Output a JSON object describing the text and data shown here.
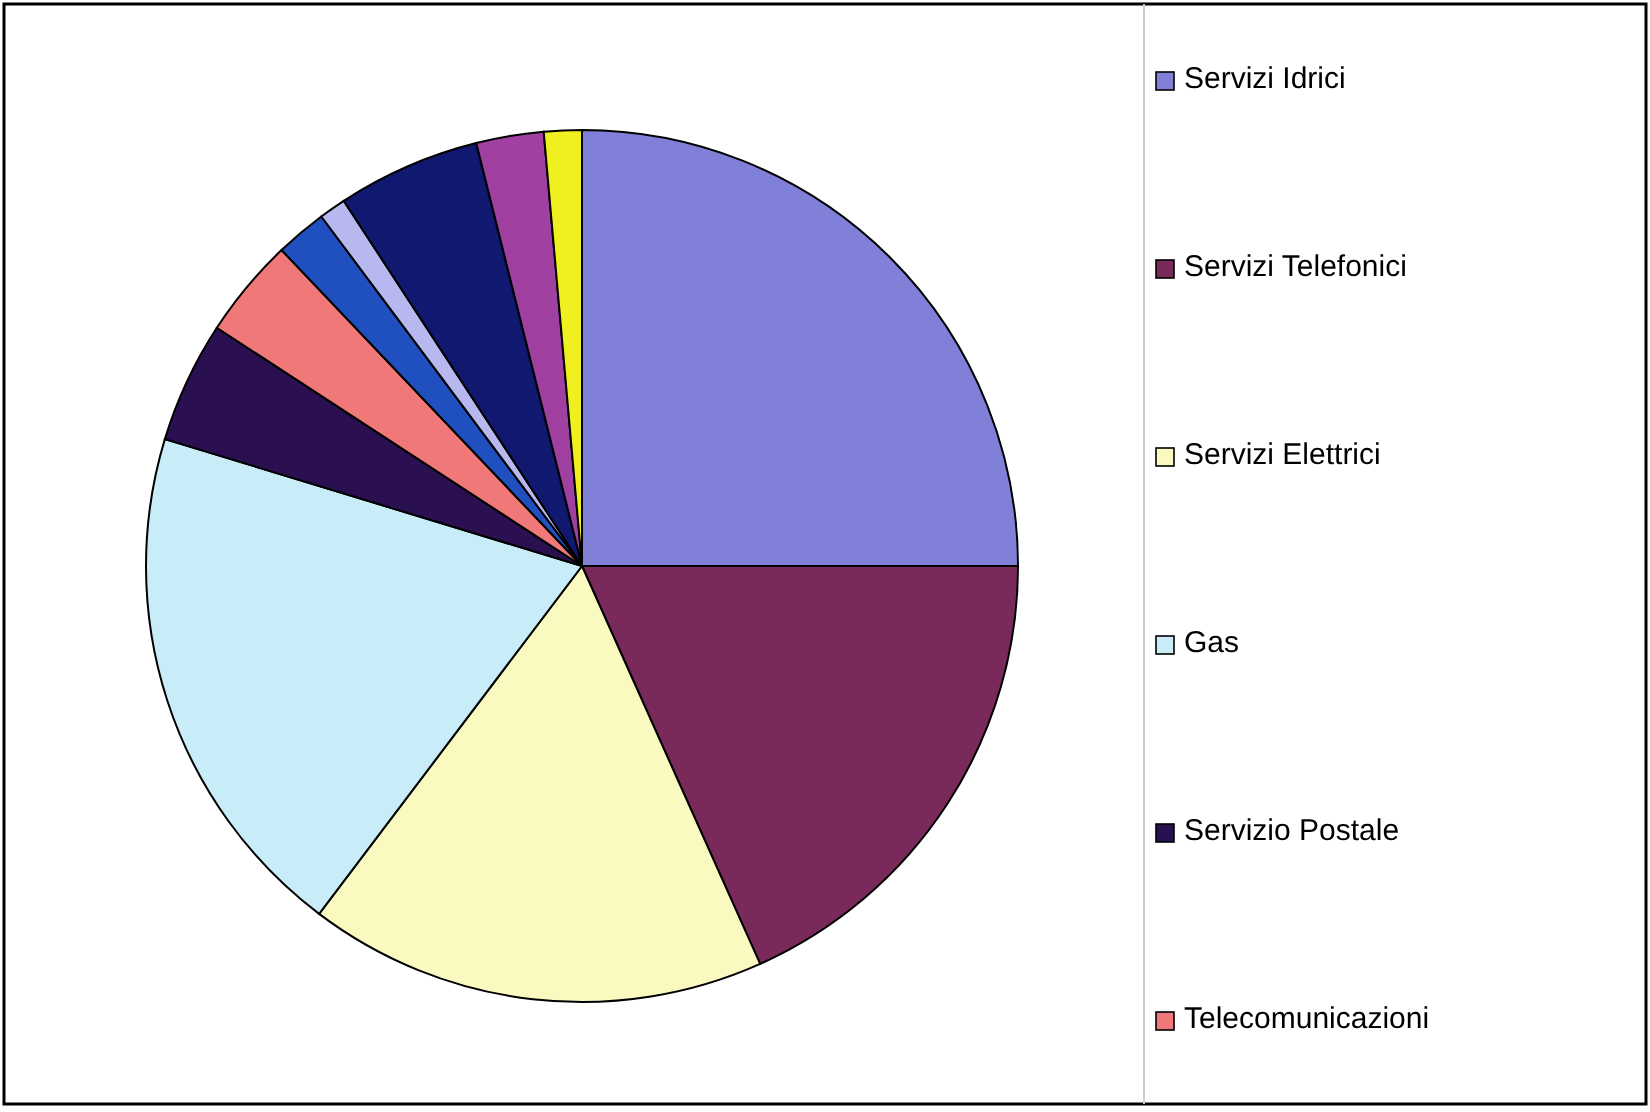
{
  "chart_data": {
    "type": "pie",
    "categories": [
      "Servizi Idrici",
      "Servizi Telefonici",
      "Servizi Elettrici",
      "Gas",
      "Servizio Postale",
      "Telecomunicazioni",
      null,
      null,
      null,
      null,
      null
    ],
    "values": [
      25,
      18.3,
      17,
      19.4,
      4.5,
      3.7,
      1.9,
      1,
      5.3,
      2.5,
      1.4
    ],
    "colors": [
      "#8080d8",
      "#7a2a5a",
      "#fafac0",
      "#c8ecf8",
      "#2a1050",
      "#f07878",
      "#2050c0",
      "#b8b8f0",
      "#101870",
      "#a040a0",
      "#f0f020"
    ],
    "legend": "right"
  }
}
